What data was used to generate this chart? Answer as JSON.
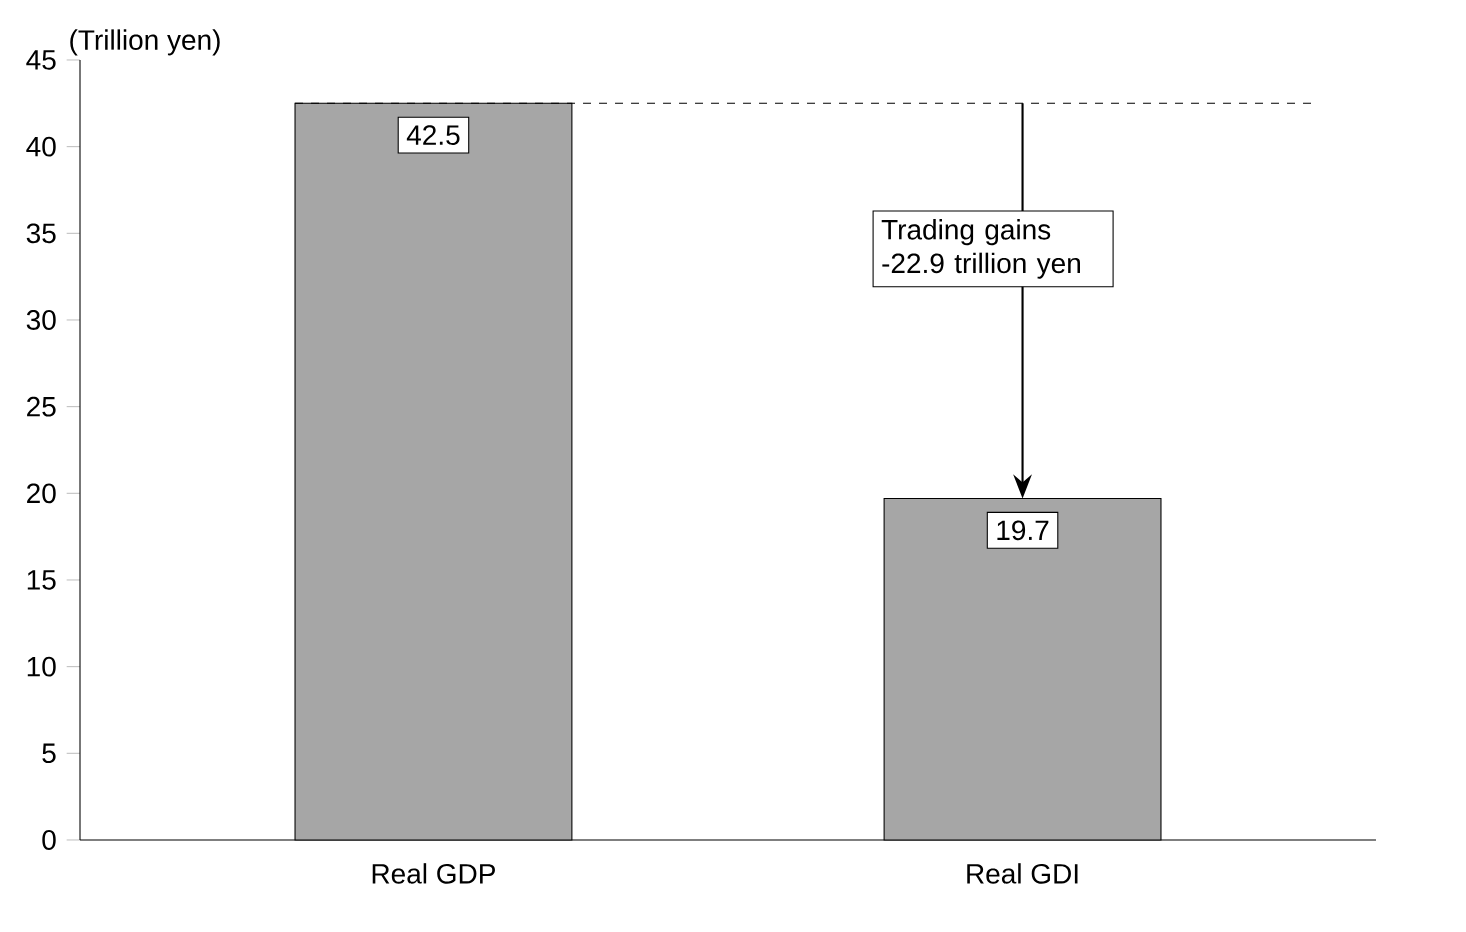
{
  "chart_data": {
    "type": "bar",
    "ylabel": "(Trillion yen)",
    "categories": [
      "Real GDP",
      "Real GDI"
    ],
    "values": [
      42.5,
      19.7
    ],
    "color": "#a6a6a6",
    "data_labels": true,
    "ylim": [
      0,
      45
    ],
    "yticks": [
      0,
      5,
      10,
      15,
      20,
      25,
      30,
      35,
      40,
      45
    ],
    "grid": false,
    "ref_lines": [
      {
        "axis": "y",
        "value": 42.5,
        "line_style": "dashed"
      }
    ],
    "annotations": [
      "Trading gains -22.9 trillion yen"
    ]
  }
}
